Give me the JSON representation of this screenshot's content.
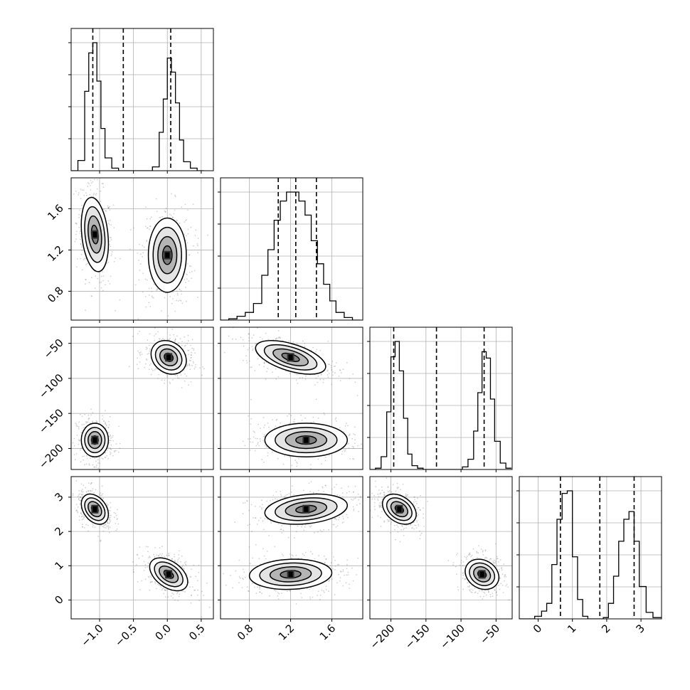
{
  "chart_data": {
    "type": "corner",
    "dimensions": 4,
    "params": [
      {
        "range": [
          -1.42,
          0.68
        ],
        "ticks": [
          -1.0,
          -0.5,
          0.0,
          0.5
        ],
        "tick_labels": [
          "−1.0",
          "−0.5",
          "0.0",
          "0.5"
        ],
        "label": ""
      },
      {
        "range": [
          0.52,
          1.9
        ],
        "ticks": [
          0.8,
          1.2,
          1.6
        ],
        "tick_labels": [
          "0.8",
          "1.2",
          "1.6"
        ],
        "label": ""
      },
      {
        "range": [
          -230,
          -27
        ],
        "ticks": [
          -200,
          -150,
          -100,
          -50
        ],
        "tick_labels": [
          "−200",
          "−150",
          "−100",
          "−50"
        ],
        "label": ""
      },
      {
        "range": [
          -0.55,
          3.6
        ],
        "ticks": [
          0,
          1,
          2,
          3
        ],
        "tick_labels": [
          "0",
          "1",
          "2",
          "3"
        ],
        "label": ""
      }
    ],
    "quantiles": [
      [
        -1.1,
        -0.65,
        0.05
      ],
      [
        1.08,
        1.25,
        1.45
      ],
      [
        -196,
        -135,
        -67
      ],
      [
        0.65,
        1.8,
        2.8
      ]
    ],
    "histograms": [
      {
        "bin_edges": [
          -1.42,
          -1.32,
          -1.22,
          -1.16,
          -1.1,
          -1.04,
          -0.98,
          -0.92,
          -0.82,
          -0.72,
          -0.62,
          -0.52,
          -0.42,
          -0.32,
          -0.22,
          -0.12,
          -0.06,
          0.0,
          0.06,
          0.12,
          0.18,
          0.24,
          0.34,
          0.44,
          0.54
        ],
        "counts": [
          0,
          0.08,
          0.62,
          0.92,
          1.0,
          0.7,
          0.33,
          0.1,
          0.02,
          0,
          0,
          0,
          0,
          0,
          0.03,
          0.3,
          0.56,
          0.88,
          0.77,
          0.53,
          0.24,
          0.07,
          0.02,
          0
        ]
      },
      {
        "bin_edges": [
          0.52,
          0.6,
          0.68,
          0.76,
          0.84,
          0.92,
          0.98,
          1.04,
          1.1,
          1.16,
          1.22,
          1.28,
          1.34,
          1.4,
          1.46,
          1.52,
          1.58,
          1.64,
          1.72,
          1.8,
          1.88
        ],
        "counts": [
          0,
          0.01,
          0.03,
          0.06,
          0.13,
          0.35,
          0.55,
          0.78,
          0.93,
          1.0,
          1.0,
          0.93,
          0.82,
          0.62,
          0.44,
          0.28,
          0.15,
          0.06,
          0.02,
          0
        ]
      },
      {
        "bin_edges": [
          -230,
          -222,
          -214,
          -206,
          -200,
          -194,
          -188,
          -182,
          -176,
          -170,
          -162,
          -154,
          -146,
          -138,
          -130,
          -122,
          -114,
          -106,
          -98,
          -90,
          -82,
          -76,
          -70,
          -64,
          -58,
          -52,
          -44,
          -36,
          -28
        ],
        "counts": [
          0,
          0.01,
          0.1,
          0.45,
          0.88,
          1.0,
          0.77,
          0.4,
          0.12,
          0.03,
          0.01,
          0,
          0,
          0,
          0,
          0,
          0,
          0,
          0.02,
          0.08,
          0.3,
          0.6,
          0.92,
          0.87,
          0.55,
          0.22,
          0.05,
          0.01
        ]
      },
      {
        "bin_edges": [
          -0.55,
          -0.3,
          -0.1,
          0.1,
          0.25,
          0.4,
          0.55,
          0.7,
          0.85,
          1.0,
          1.15,
          1.3,
          1.45,
          1.6,
          1.75,
          1.9,
          2.05,
          2.2,
          2.35,
          2.5,
          2.65,
          2.8,
          2.95,
          3.15,
          3.35,
          3.6
        ],
        "counts": [
          0,
          0,
          0.02,
          0.06,
          0.12,
          0.42,
          0.77,
          0.97,
          0.99,
          0.48,
          0.15,
          0.02,
          0,
          0,
          0,
          0.01,
          0.12,
          0.33,
          0.6,
          0.77,
          0.83,
          0.6,
          0.25,
          0.05,
          0.01
        ]
      }
    ],
    "scatter_blobs": [
      {
        "row": 1,
        "col": 0,
        "clusters": [
          {
            "mx": -1.07,
            "my": 1.35,
            "sx": 0.1,
            "sy": 0.18,
            "rho": -0.25
          },
          {
            "mx": 0.0,
            "my": 1.15,
            "sx": 0.14,
            "sy": 0.18,
            "rho": 0.0
          }
        ]
      },
      {
        "row": 2,
        "col": 0,
        "clusters": [
          {
            "mx": -1.07,
            "my": -188,
            "sx": 0.1,
            "sy": 12,
            "rho": 0.0
          },
          {
            "mx": 0.02,
            "my": -70,
            "sx": 0.13,
            "sy": 12,
            "rho": -0.2
          }
        ]
      },
      {
        "row": 2,
        "col": 1,
        "clusters": [
          {
            "mx": 1.2,
            "my": -70,
            "sx": 0.17,
            "sy": 12,
            "rho": -0.55
          },
          {
            "mx": 1.35,
            "my": -188,
            "sx": 0.2,
            "sy": 12,
            "rho": 0.0
          }
        ]
      },
      {
        "row": 3,
        "col": 0,
        "clusters": [
          {
            "mx": -1.07,
            "my": 2.65,
            "sx": 0.1,
            "sy": 0.22,
            "rho": -0.35
          },
          {
            "mx": 0.02,
            "my": 0.75,
            "sx": 0.14,
            "sy": 0.24,
            "rho": -0.45
          }
        ]
      },
      {
        "row": 3,
        "col": 1,
        "clusters": [
          {
            "mx": 1.35,
            "my": 2.65,
            "sx": 0.2,
            "sy": 0.22,
            "rho": 0.25
          },
          {
            "mx": 1.2,
            "my": 0.75,
            "sx": 0.2,
            "sy": 0.22,
            "rho": 0.1
          }
        ]
      },
      {
        "row": 3,
        "col": 2,
        "clusters": [
          {
            "mx": -188,
            "my": 2.65,
            "sx": 12,
            "sy": 0.22,
            "rho": -0.35
          },
          {
            "mx": -70,
            "my": 0.75,
            "sx": 12,
            "sy": 0.22,
            "rho": -0.2
          }
        ]
      }
    ],
    "contour_levels": [
      0.5,
      1.0,
      1.5,
      2.0
    ],
    "grid": true
  }
}
